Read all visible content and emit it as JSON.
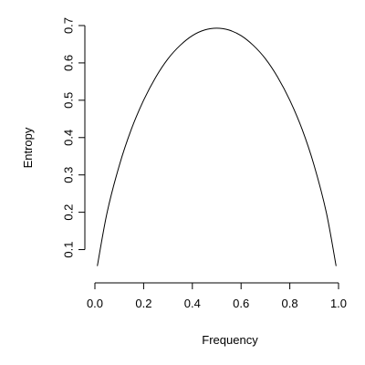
{
  "chart_data": {
    "type": "line",
    "title": "",
    "xlabel": "Frequency",
    "ylabel": "Entropy",
    "xlim": [
      0.0,
      1.0
    ],
    "ylim": [
      0.05,
      0.7
    ],
    "xticks": [
      0.0,
      0.2,
      0.4,
      0.6,
      0.8,
      1.0
    ],
    "xtick_labels": [
      "0.0",
      "0.2",
      "0.4",
      "0.6",
      "0.8",
      "1.0"
    ],
    "yticks": [
      0.1,
      0.2,
      0.3,
      0.4,
      0.5,
      0.6,
      0.7
    ],
    "ytick_labels": [
      "0.1",
      "0.2",
      "0.3",
      "0.4",
      "0.5",
      "0.6",
      "0.7"
    ],
    "grid": false,
    "legend": "none",
    "series": [
      {
        "x": [
          0.01,
          0.05,
          0.1,
          0.15,
          0.2,
          0.25,
          0.3,
          0.35,
          0.4,
          0.45,
          0.5,
          0.55,
          0.6,
          0.65,
          0.7,
          0.75,
          0.8,
          0.85,
          0.9,
          0.95,
          0.99
        ],
        "y": [
          0.056,
          0.199,
          0.325,
          0.423,
          0.5,
          0.562,
          0.611,
          0.647,
          0.673,
          0.688,
          0.693,
          0.688,
          0.673,
          0.647,
          0.611,
          0.562,
          0.5,
          0.423,
          0.325,
          0.199,
          0.056
        ],
        "color": "#000000"
      }
    ]
  }
}
